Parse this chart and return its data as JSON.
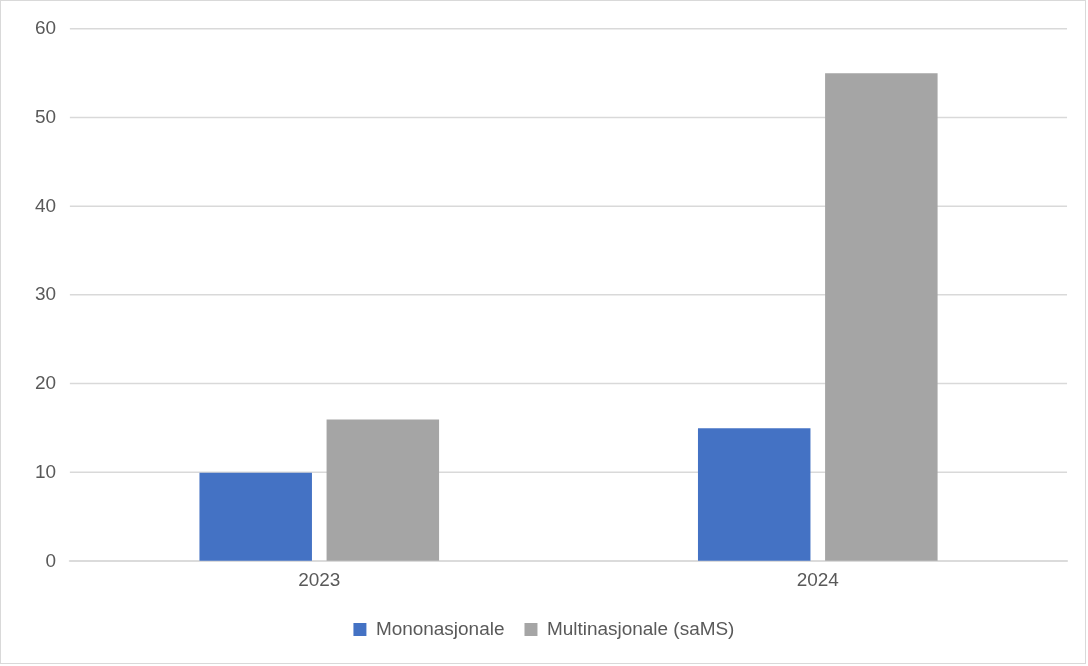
{
  "chart_data": {
    "type": "bar",
    "categories": [
      "2023",
      "2024"
    ],
    "series": [
      {
        "name": "Mononasjonale",
        "color": "#4472c4",
        "values": [
          10,
          15
        ]
      },
      {
        "name": "Multinasjonale (saMS)",
        "color": "#a5a5a5",
        "values": [
          16,
          55
        ]
      }
    ],
    "ylim": [
      0,
      60
    ],
    "yticks": [
      0,
      10,
      20,
      30,
      40,
      50,
      60
    ],
    "grid": "y",
    "legend": "bottom"
  }
}
